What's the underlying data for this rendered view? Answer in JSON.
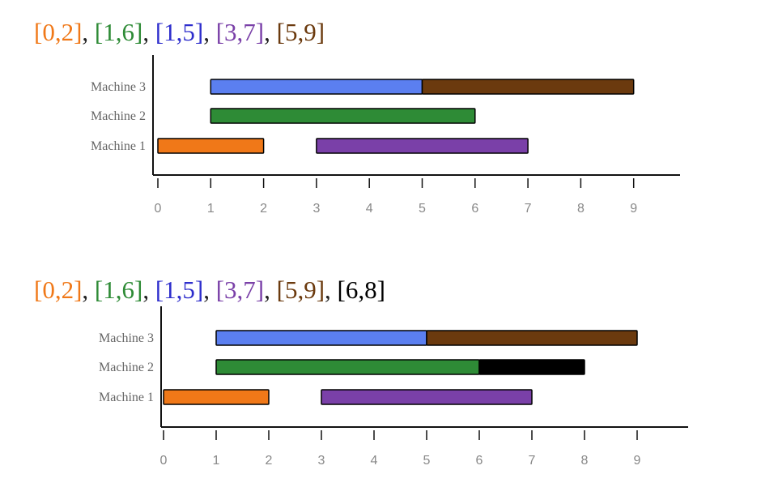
{
  "chart_data": [
    {
      "type": "gantt",
      "title_intervals": [
        {
          "text": "[0,2]",
          "color": "#f07818"
        },
        {
          "text": "[1,6]",
          "color": "#2e8b36"
        },
        {
          "text": "[1,5]",
          "color": "#2e2ecc"
        },
        {
          "text": "[3,7]",
          "color": "#7a40a8"
        },
        {
          "text": "[5,9]",
          "color": "#6b3a0e"
        }
      ],
      "separator": ", ",
      "rows": [
        "Machine 3",
        "Machine 2",
        "Machine 1"
      ],
      "x_ticks": [
        0,
        1,
        2,
        3,
        4,
        5,
        6,
        7,
        8,
        9
      ],
      "xlim": [
        0,
        9.6
      ],
      "bars": [
        {
          "row": "Machine 3",
          "start": 1,
          "end": 5,
          "color": "#5b7ff0"
        },
        {
          "row": "Machine 3",
          "start": 5,
          "end": 9,
          "color": "#6b3a0e"
        },
        {
          "row": "Machine 2",
          "start": 1,
          "end": 6,
          "color": "#2e8b36"
        },
        {
          "row": "Machine 1",
          "start": 0,
          "end": 2,
          "color": "#f07818"
        },
        {
          "row": "Machine 1",
          "start": 3,
          "end": 7,
          "color": "#7a40a8"
        }
      ]
    },
    {
      "type": "gantt",
      "title_intervals": [
        {
          "text": "[0,2]",
          "color": "#f07818"
        },
        {
          "text": "[1,6]",
          "color": "#2e8b36"
        },
        {
          "text": "[1,5]",
          "color": "#2e2ecc"
        },
        {
          "text": "[3,7]",
          "color": "#7a40a8"
        },
        {
          "text": "[5,9]",
          "color": "#6b3a0e"
        },
        {
          "text": "[6,8]",
          "color": "#000000"
        }
      ],
      "separator": ", ",
      "rows": [
        "Machine 3",
        "Machine 2",
        "Machine 1"
      ],
      "x_ticks": [
        0,
        1,
        2,
        3,
        4,
        5,
        6,
        7,
        8,
        9
      ],
      "xlim": [
        0,
        9.6
      ],
      "bars": [
        {
          "row": "Machine 3",
          "start": 1,
          "end": 5,
          "color": "#5b7ff0"
        },
        {
          "row": "Machine 3",
          "start": 5,
          "end": 9,
          "color": "#6b3a0e"
        },
        {
          "row": "Machine 2",
          "start": 1,
          "end": 6,
          "color": "#2e8b36"
        },
        {
          "row": "Machine 2",
          "start": 6,
          "end": 8,
          "color": "#000000"
        },
        {
          "row": "Machine 1",
          "start": 0,
          "end": 2,
          "color": "#f07818"
        },
        {
          "row": "Machine 1",
          "start": 3,
          "end": 7,
          "color": "#7a40a8"
        }
      ]
    }
  ]
}
